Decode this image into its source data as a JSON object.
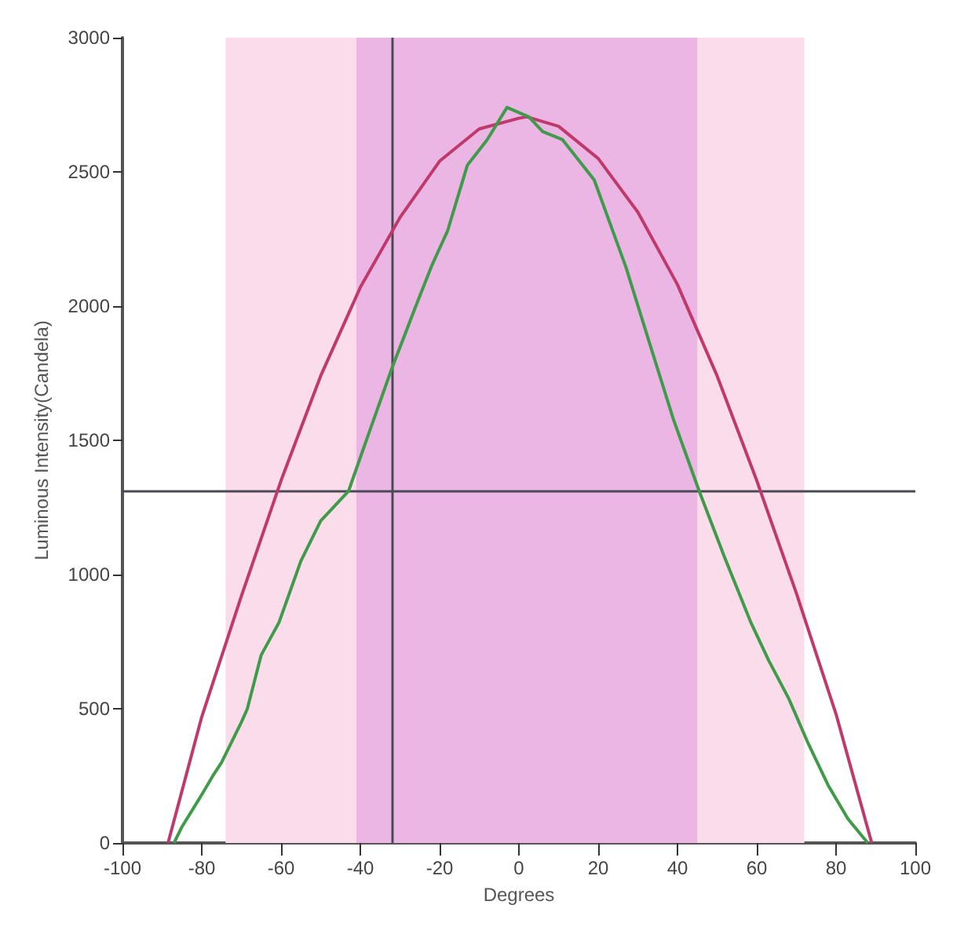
{
  "chart_data": {
    "type": "line",
    "xlabel": "Degrees",
    "ylabel": "Luminous Intensity(Candela)",
    "xlim": [
      -100,
      100
    ],
    "xticks": [
      -100,
      -80,
      -60,
      -40,
      -20,
      0,
      20,
      40,
      60,
      80,
      100
    ],
    "ylim": [
      0,
      3000
    ],
    "yticks": [
      0,
      500,
      1000,
      1500,
      2000,
      2500,
      3000
    ],
    "grid": false,
    "marker": "none",
    "line_style": "solid",
    "bands": [
      {
        "axis": "x",
        "from": -74,
        "to": 72,
        "color": "#fbdcea"
      },
      {
        "axis": "x",
        "from": -41,
        "to": 45,
        "color": "#ebb6e4"
      }
    ],
    "ref_lines": [
      {
        "axis": "x",
        "value": -32,
        "color": "#4a4a55"
      },
      {
        "axis": "y",
        "value": 1310,
        "color": "#4a4a55"
      }
    ],
    "series": [
      {
        "color": "#c0396b",
        "x": [
          -88.5,
          -80,
          -70,
          -60,
          -50,
          -40,
          -30,
          -20,
          -10,
          0,
          2,
          10,
          20,
          30,
          40,
          50,
          60,
          70,
          80,
          89
        ],
        "values": [
          0,
          470,
          920,
          1350,
          1740,
          2070,
          2330,
          2540,
          2660,
          2700,
          2705,
          2670,
          2550,
          2350,
          2080,
          1740,
          1350,
          930,
          480,
          0
        ]
      },
      {
        "color": "#3f9a4a",
        "x": [
          -87,
          -85,
          -80,
          -77,
          -75,
          -70,
          -68.5,
          -65,
          -60.5,
          -55,
          -50,
          -43,
          -38,
          -32,
          -26,
          -22,
          -18,
          -13,
          -8,
          -3,
          2.5,
          6,
          11,
          19,
          27,
          33,
          39,
          45.5,
          52,
          58.5,
          63,
          68,
          73,
          78,
          83,
          88
        ],
        "values": [
          0,
          60,
          180,
          255,
          300,
          450,
          500,
          700,
          822,
          1050,
          1200,
          1310,
          1520,
          1770,
          2000,
          2150,
          2280,
          2525,
          2620,
          2740,
          2705,
          2650,
          2620,
          2470,
          2145,
          1860,
          1577,
          1310,
          1060,
          822,
          680,
          540,
          370,
          215,
          90,
          0
        ]
      }
    ]
  }
}
